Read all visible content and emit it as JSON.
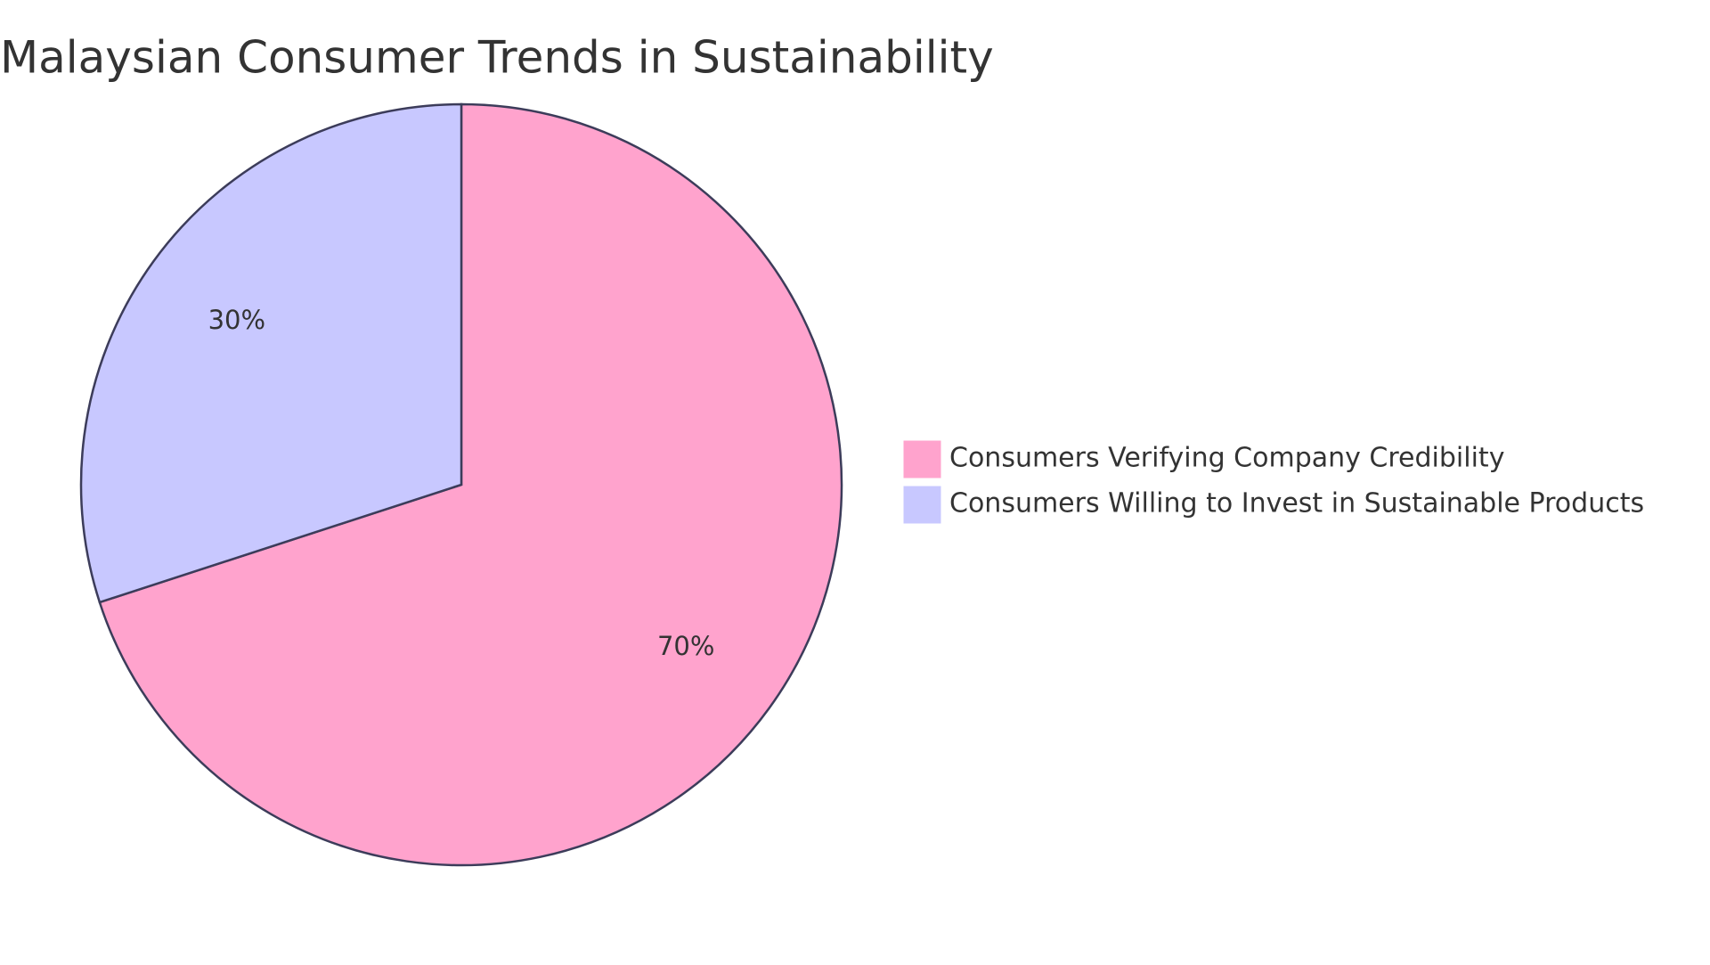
{
  "chart_data": {
    "type": "pie",
    "title": "Malaysian Consumer Trends in Sustainability",
    "categories": [
      "Consumers Verifying Company Credibility",
      "Consumers Willing to Invest in Sustainable Products"
    ],
    "values": [
      70,
      30
    ],
    "value_labels": [
      "70%",
      "30%"
    ],
    "colors": [
      "#ffa3cd",
      "#c8c8ff"
    ],
    "legend": "right"
  }
}
